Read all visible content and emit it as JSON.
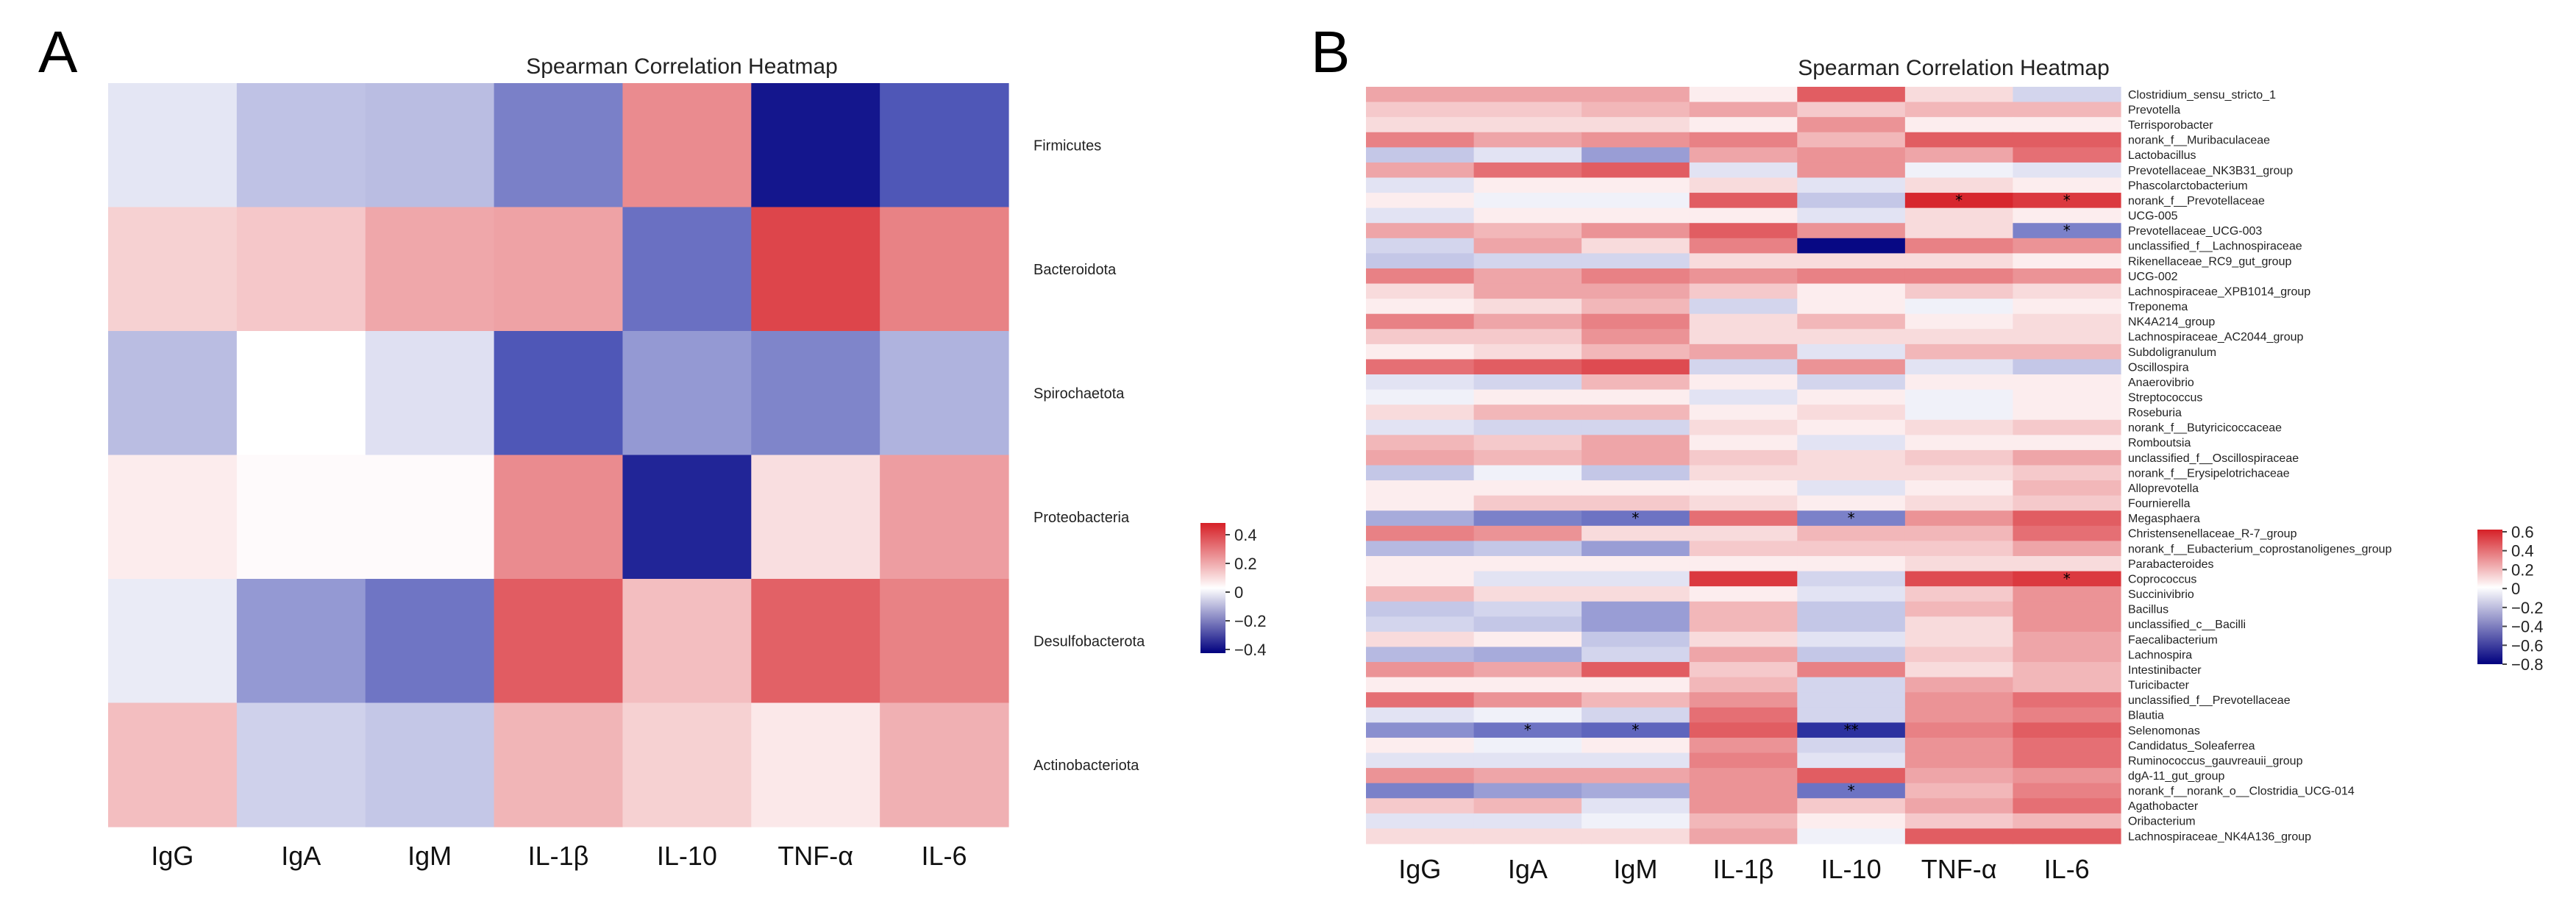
{
  "panels": [
    {
      "letter": "A",
      "chart_data": {
        "type": "heatmap",
        "title": "Spearman Correlation Heatmap",
        "x_categories": [
          "IgG",
          "IgA",
          "IgM",
          "IL-1β",
          "IL-10",
          "TNF-α",
          "IL-6"
        ],
        "y_categories": [
          "Firmicutes",
          "Bacteroidota",
          "Spirochaetota",
          "Proteobacteria",
          "Desulfobacterota",
          "Actinobacteriota"
        ],
        "values": [
          [
            -0.05,
            -0.12,
            -0.13,
            -0.25,
            0.25,
            -0.42,
            -0.33
          ],
          [
            0.1,
            0.12,
            0.19,
            0.2,
            -0.28,
            0.4,
            0.27
          ],
          [
            -0.13,
            0.0,
            -0.06,
            -0.33,
            -0.2,
            -0.24,
            -0.15
          ],
          [
            0.04,
            0.01,
            0.01,
            0.25,
            -0.4,
            0.07,
            0.21
          ],
          [
            -0.04,
            -0.2,
            -0.27,
            0.35,
            0.14,
            0.34,
            0.27
          ],
          [
            0.14,
            -0.09,
            -0.11,
            0.16,
            0.1,
            0.05,
            0.17
          ]
        ],
        "colorbar": {
          "ticks": [
            "0.4",
            "0.2",
            "0",
            "−0.2",
            "−0.4"
          ],
          "range": [
            -0.45,
            0.48
          ]
        }
      }
    },
    {
      "letter": "B",
      "chart_data": {
        "type": "heatmap",
        "title": "Spearman Correlation Heatmap",
        "x_categories": [
          "IgG",
          "IgA",
          "IgM",
          "IL-1β",
          "IL-10",
          "TNF-α",
          "IL-6"
        ],
        "y_categories": [
          "Clostridium_sensu_stricto_1",
          "Prevotella",
          "Terrisporobacter",
          "norank_f__Muribaculaceae",
          "Lactobacillus",
          "Prevotellaceae_NK3B31_group",
          "Phascolarctobacterium",
          "norank_f__Prevotellaceae",
          "UCG-005",
          "Prevotellaceae_UCG-003",
          "unclassified_f__Lachnospiraceae",
          "Rikenellaceae_RC9_gut_group",
          "UCG-002",
          "Lachnospiraceae_XPB1014_group",
          "Treponema",
          "NK4A214_group",
          "Lachnospiraceae_AC2044_group",
          "Subdoligranulum",
          "Oscillospira",
          "Anaerovibrio",
          "Streptococcus",
          "Roseburia",
          "norank_f__Butyricicoccaceae",
          "Romboutsia",
          "unclassified_f__Oscillospiraceae",
          "norank_f__Erysipelotrichaceae",
          "Alloprevotella",
          "Fournierella",
          "Megasphaera",
          "Christensenellaceae_R-7_group",
          "norank_f__Eubacterium_coprostanoligenes_group",
          "Parabacteroides",
          "Coprococcus",
          "Succinivibrio",
          "Bacillus",
          "unclassified_c__Bacilli",
          "Faecalibacterium",
          "Lachnospira",
          "Intestinibacter",
          "Turicibacter",
          "unclassified_f__Prevotellaceae",
          "Blautia",
          "Selenomonas",
          "Candidatus_Soleaferrea",
          "Ruminococcus_gauvreauii_group",
          "dgA-11_gut_group",
          "norank_f__norank_o__Clostridia_UCG-014",
          "Agathobacter",
          "Oribacterium",
          "Lachnospiraceae_NK4A136_group"
        ],
        "values": [
          [
            0.25,
            0.25,
            0.25,
            0.05,
            0.45,
            0.1,
            -0.15
          ],
          [
            0.15,
            0.15,
            0.2,
            0.25,
            0.15,
            0.2,
            0.2
          ],
          [
            0.1,
            0.1,
            0.1,
            0.05,
            0.3,
            0.05,
            0.05
          ],
          [
            0.35,
            0.25,
            0.3,
            0.35,
            0.2,
            0.45,
            0.45
          ],
          [
            -0.2,
            -0.1,
            -0.35,
            0.25,
            0.3,
            0.25,
            0.4
          ],
          [
            0.25,
            0.4,
            0.45,
            -0.1,
            0.3,
            -0.05,
            -0.1
          ],
          [
            -0.1,
            0.05,
            0.05,
            0.1,
            -0.1,
            0.1,
            0.05
          ],
          [
            0.05,
            -0.05,
            -0.05,
            0.45,
            -0.2,
            0.6,
            0.55
          ],
          [
            -0.1,
            0.05,
            0.05,
            0.05,
            -0.1,
            0.1,
            0.05
          ],
          [
            0.25,
            0.2,
            0.3,
            0.45,
            0.3,
            0.1,
            -0.45
          ],
          [
            -0.15,
            0.25,
            0.1,
            0.35,
            -0.8,
            0.35,
            0.3
          ],
          [
            -0.2,
            -0.15,
            -0.15,
            0.1,
            0.1,
            0.1,
            0.05
          ],
          [
            0.35,
            0.25,
            0.35,
            0.3,
            0.35,
            0.35,
            0.3
          ],
          [
            0.1,
            0.25,
            0.25,
            0.15,
            0.05,
            0.15,
            0.1
          ],
          [
            0.05,
            0.1,
            0.2,
            -0.15,
            0.05,
            -0.05,
            0.05
          ],
          [
            0.35,
            0.25,
            0.35,
            0.1,
            0.2,
            0.05,
            0.1
          ],
          [
            0.15,
            0.15,
            0.3,
            0.1,
            0.1,
            0.1,
            0.1
          ],
          [
            0.05,
            0.1,
            0.2,
            0.25,
            -0.1,
            0.2,
            0.2
          ],
          [
            0.4,
            0.45,
            0.5,
            -0.15,
            0.3,
            -0.1,
            -0.2
          ],
          [
            -0.1,
            -0.15,
            0.2,
            0.05,
            -0.15,
            0.05,
            0.05
          ],
          [
            -0.05,
            0.05,
            0.05,
            -0.1,
            0.05,
            -0.05,
            0.05
          ],
          [
            0.1,
            0.2,
            0.2,
            0.05,
            0.1,
            -0.05,
            0.05
          ],
          [
            -0.1,
            -0.15,
            -0.15,
            0.1,
            0.05,
            0.1,
            0.15
          ],
          [
            0.2,
            0.15,
            0.25,
            0.05,
            -0.1,
            0.05,
            0.05
          ],
          [
            0.25,
            0.2,
            0.25,
            0.15,
            0.1,
            0.15,
            0.25
          ],
          [
            -0.2,
            -0.05,
            -0.2,
            0.1,
            0.1,
            0.1,
            0.15
          ],
          [
            0.05,
            0.05,
            0.05,
            0.05,
            -0.1,
            0.05,
            0.2
          ],
          [
            0.05,
            0.15,
            0.15,
            0.1,
            0.05,
            0.1,
            0.15
          ],
          [
            -0.3,
            -0.45,
            -0.5,
            0.4,
            -0.45,
            0.3,
            0.45
          ],
          [
            0.35,
            0.3,
            0.1,
            0.1,
            0.2,
            0.2,
            0.4
          ],
          [
            -0.25,
            -0.2,
            -0.35,
            0.15,
            0.15,
            0.15,
            0.25
          ],
          [
            0.05,
            0.05,
            0.05,
            0.05,
            0.05,
            0.1,
            0.1
          ],
          [
            0.05,
            -0.1,
            -0.1,
            0.55,
            -0.15,
            0.5,
            0.55
          ],
          [
            0.2,
            0.1,
            0.1,
            0.05,
            -0.1,
            0.15,
            0.3
          ],
          [
            -0.2,
            -0.15,
            -0.35,
            0.2,
            -0.2,
            0.2,
            0.3
          ],
          [
            -0.15,
            -0.2,
            -0.35,
            0.2,
            -0.2,
            0.1,
            0.3
          ],
          [
            0.1,
            0.05,
            -0.2,
            0.1,
            -0.1,
            0.1,
            0.25
          ],
          [
            -0.25,
            -0.3,
            -0.15,
            0.25,
            -0.2,
            0.15,
            0.25
          ],
          [
            0.3,
            0.25,
            0.45,
            0.15,
            0.35,
            0.1,
            0.2
          ],
          [
            0.05,
            0.05,
            0.05,
            0.2,
            -0.15,
            0.25,
            0.2
          ],
          [
            0.4,
            0.3,
            0.2,
            0.3,
            -0.15,
            0.3,
            0.4
          ],
          [
            -0.1,
            -0.05,
            -0.15,
            0.4,
            -0.15,
            0.3,
            0.35
          ],
          [
            -0.4,
            -0.5,
            -0.55,
            0.45,
            -0.7,
            0.35,
            0.45
          ],
          [
            0.05,
            -0.05,
            0.05,
            0.3,
            -0.15,
            0.3,
            0.4
          ],
          [
            -0.1,
            -0.1,
            -0.1,
            0.35,
            -0.1,
            0.3,
            0.4
          ],
          [
            0.3,
            0.25,
            0.25,
            0.3,
            0.45,
            0.25,
            0.3
          ],
          [
            -0.45,
            -0.35,
            -0.3,
            0.3,
            -0.5,
            0.2,
            0.35
          ],
          [
            0.15,
            0.2,
            -0.1,
            0.3,
            0.15,
            0.25,
            0.4
          ],
          [
            -0.1,
            -0.1,
            -0.05,
            0.2,
            0.05,
            0.15,
            0.2
          ],
          [
            0.1,
            0.1,
            0.1,
            0.25,
            -0.05,
            0.45,
            0.45
          ]
        ],
        "significance": [
          {
            "row": 7,
            "col": 5,
            "mark": "*"
          },
          {
            "row": 7,
            "col": 6,
            "mark": "*"
          },
          {
            "row": 9,
            "col": 6,
            "mark": "*"
          },
          {
            "row": 28,
            "col": 2,
            "mark": "*"
          },
          {
            "row": 28,
            "col": 4,
            "mark": "*"
          },
          {
            "row": 32,
            "col": 6,
            "mark": "*"
          },
          {
            "row": 42,
            "col": 1,
            "mark": "*"
          },
          {
            "row": 42,
            "col": 2,
            "mark": "*"
          },
          {
            "row": 42,
            "col": 4,
            "mark": "**"
          },
          {
            "row": 46,
            "col": 4,
            "mark": "*"
          }
        ],
        "colorbar": {
          "ticks": [
            "0.6",
            "0.4",
            "0.2",
            "0",
            "−0.2",
            "−0.4",
            "−0.6",
            "−0.8"
          ],
          "range": [
            -0.82,
            0.62
          ]
        }
      }
    }
  ]
}
